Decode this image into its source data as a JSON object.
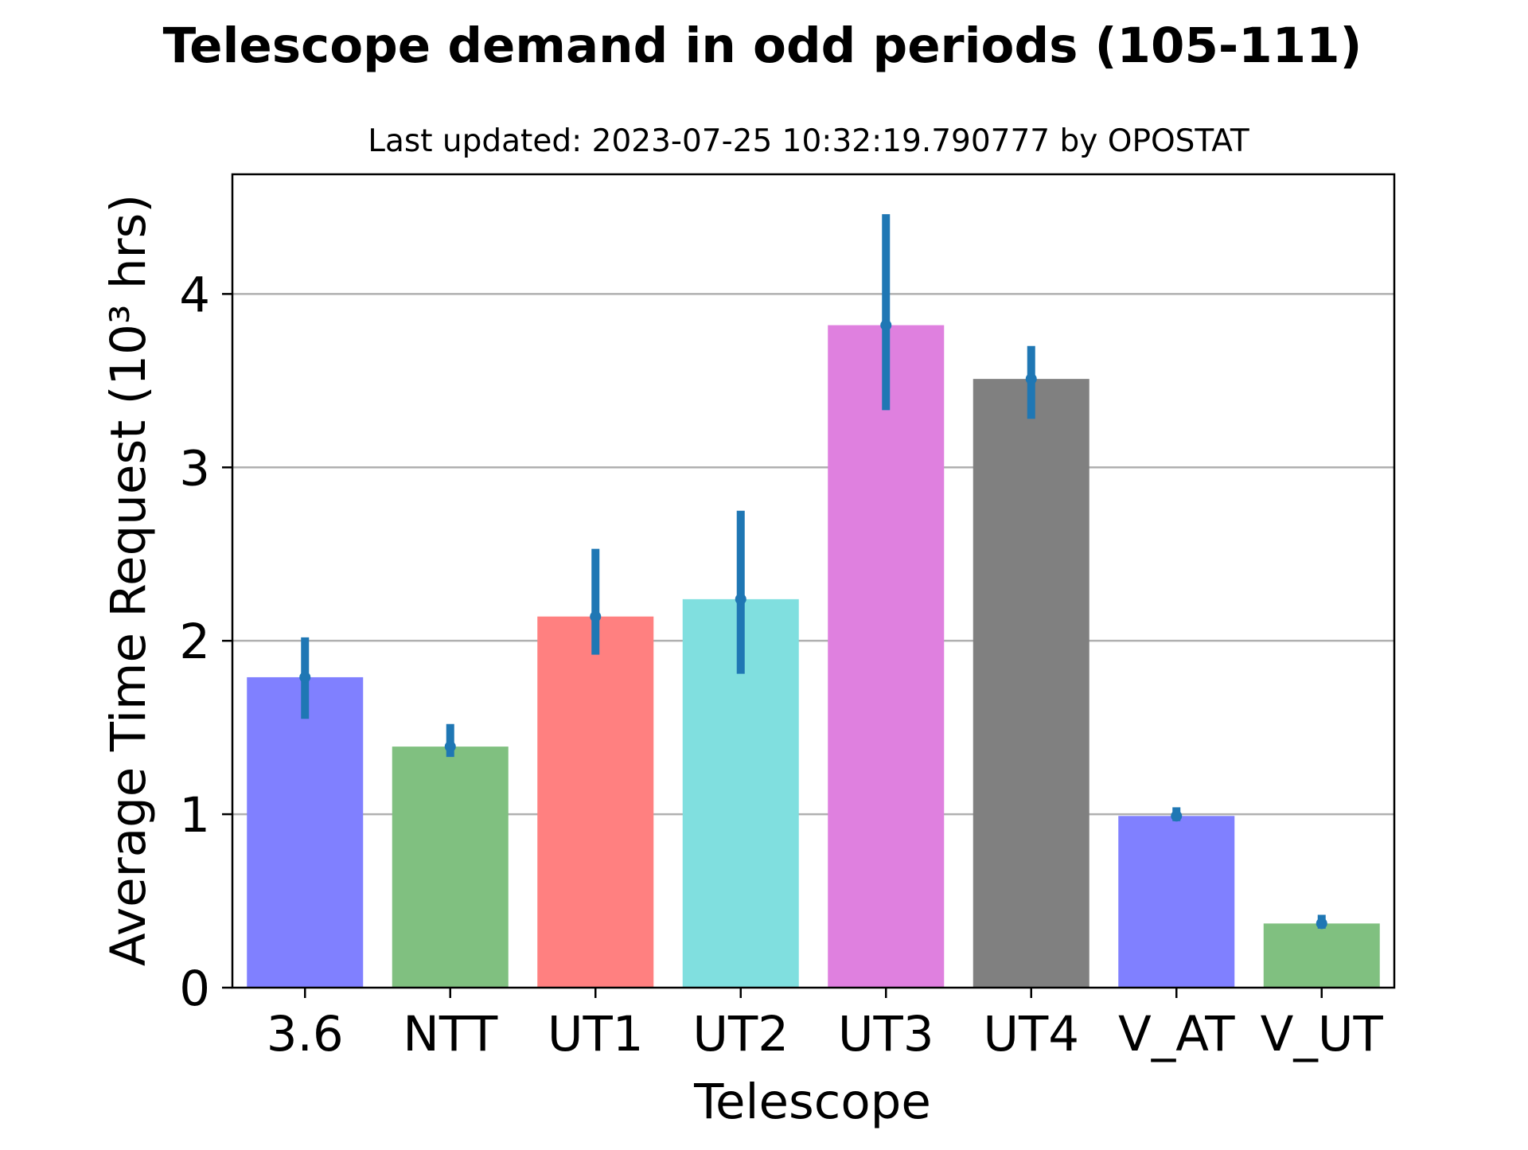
{
  "chart_data": {
    "type": "bar",
    "title": "Telescope demand in odd periods (105-111)",
    "subtitle": "Last updated: 2023-07-25 10:32:19.790777 by OPOSTAT",
    "xlabel": "Telescope",
    "ylabel": "Average Time Request (10³ hrs)",
    "categories": [
      "3.6",
      "NTT",
      "UT1",
      "UT2",
      "UT3",
      "UT4",
      "V_AT",
      "V_UT"
    ],
    "values": [
      1.79,
      1.39,
      2.14,
      2.24,
      3.82,
      3.51,
      0.99,
      0.37
    ],
    "error_low": [
      1.55,
      1.33,
      1.92,
      1.81,
      3.33,
      3.28,
      0.96,
      0.34
    ],
    "error_high": [
      2.02,
      1.52,
      2.53,
      2.75,
      4.46,
      3.7,
      1.04,
      0.42
    ],
    "bar_colors": [
      "#8080ff",
      "#80c080",
      "#ff8080",
      "#80dfdf",
      "#df80df",
      "#808080",
      "#8080ff",
      "#80c080"
    ],
    "error_color": "#1f77b4",
    "y_ticks": [
      "0",
      "1",
      "2",
      "3",
      "4"
    ],
    "ylim": [
      0,
      4.69
    ],
    "grid": "y-major",
    "legend": "none"
  }
}
